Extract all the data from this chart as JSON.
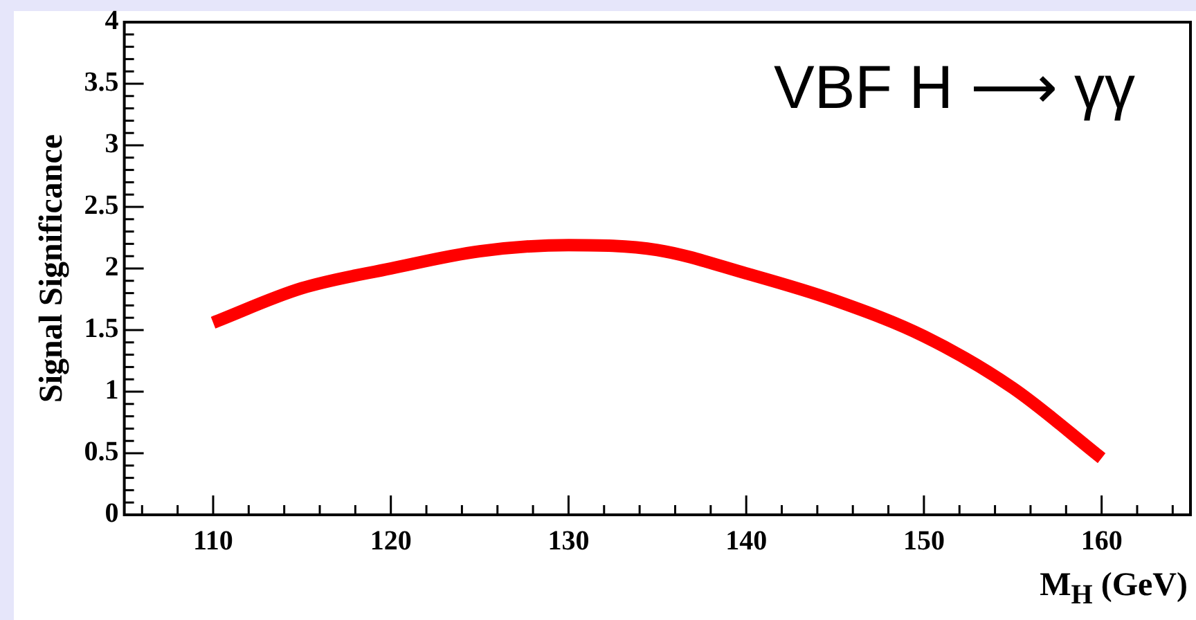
{
  "chart_data": {
    "type": "line",
    "xlabel": "M$_{H}$ (GeV)",
    "ylabel": "Signal Significance",
    "annotations": [
      "VBF H ⟶ γγ"
    ],
    "x": [
      110,
      115,
      120,
      125,
      130,
      135,
      140,
      145,
      150,
      155,
      160
    ],
    "series": [
      {
        "color": "#ff0000",
        "values": [
          1.56,
          1.84,
          2.0,
          2.14,
          2.19,
          2.15,
          1.96,
          1.74,
          1.45,
          1.03,
          0.46
        ]
      }
    ],
    "xlim": [
      105,
      165
    ],
    "xticks": [
      110,
      120,
      130,
      140,
      150,
      160
    ],
    "ylim": [
      0,
      4
    ],
    "yticks": [
      0,
      0.5,
      1,
      1.5,
      2,
      2.5,
      3,
      3.5,
      4
    ],
    "grid": false,
    "legend": false,
    "marker": "none",
    "line_style": "solid"
  }
}
